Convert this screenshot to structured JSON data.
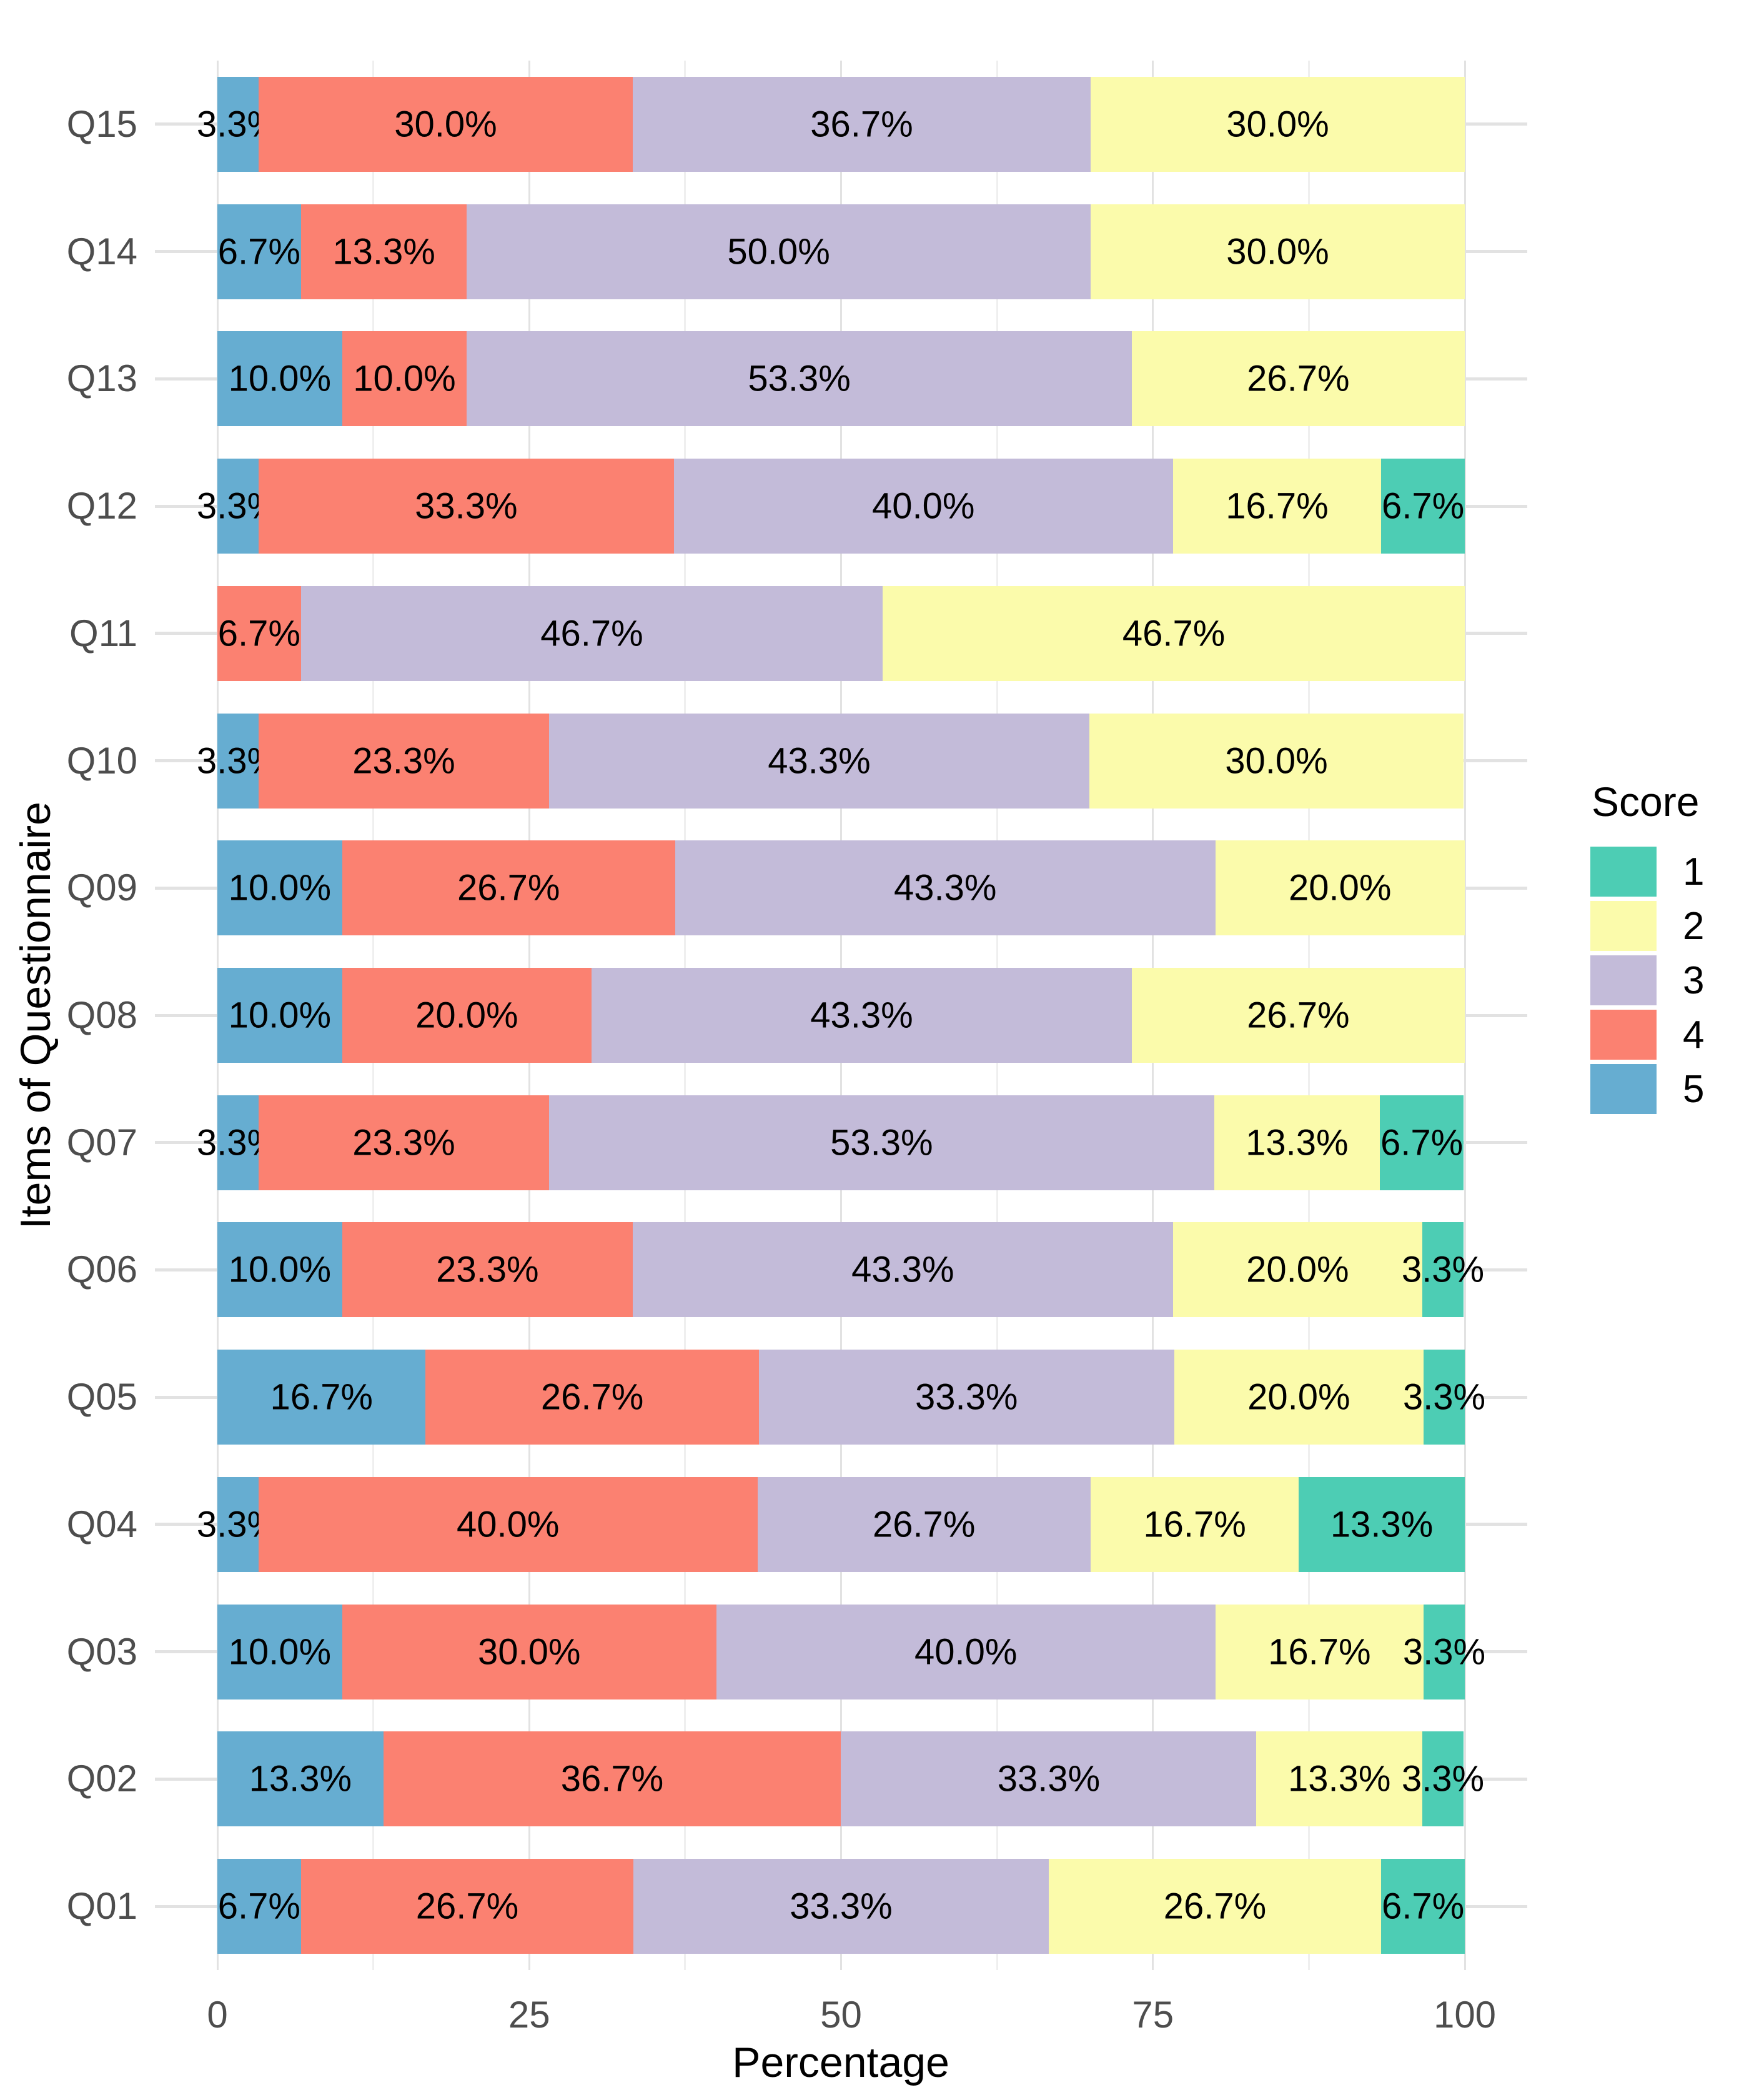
{
  "chart_data": {
    "type": "bar",
    "orientation": "horizontal",
    "stacked": true,
    "xlabel": "Percentage",
    "ylabel": "Items of Questionnaire",
    "xlim": [
      0,
      100
    ],
    "x_ticks": [
      0,
      25,
      50,
      75,
      100
    ],
    "x_minor_ticks": [
      12.5,
      37.5,
      62.5,
      87.5
    ],
    "grid": "on",
    "score_colors": {
      "1": "#4dcdb4",
      "2": "#fbfbab",
      "3": "#c3bbd9",
      "4": "#fb8171",
      "5": "#66add1"
    },
    "legend": {
      "title": "Score",
      "position": "right",
      "entries": [
        {
          "label": "1",
          "color": "#4dcdb4"
        },
        {
          "label": "2",
          "color": "#fbfbab"
        },
        {
          "label": "3",
          "color": "#c3bbd9"
        },
        {
          "label": "4",
          "color": "#fb8171"
        },
        {
          "label": "5",
          "color": "#66add1"
        }
      ]
    },
    "rows": [
      {
        "item": "Q15",
        "segments": [
          {
            "score": "5",
            "value": 3.3,
            "label": "3.3%"
          },
          {
            "score": "4",
            "value": 30.0,
            "label": "30.0%"
          },
          {
            "score": "3",
            "value": 36.7,
            "label": "36.7%"
          },
          {
            "score": "2",
            "value": 30.0,
            "label": "30.0%"
          }
        ]
      },
      {
        "item": "Q14",
        "segments": [
          {
            "score": "5",
            "value": 6.7,
            "label": "6.7%"
          },
          {
            "score": "4",
            "value": 13.3,
            "label": "13.3%"
          },
          {
            "score": "3",
            "value": 50.0,
            "label": "50.0%"
          },
          {
            "score": "2",
            "value": 30.0,
            "label": "30.0%"
          }
        ]
      },
      {
        "item": "Q13",
        "segments": [
          {
            "score": "5",
            "value": 10.0,
            "label": "10.0%"
          },
          {
            "score": "4",
            "value": 10.0,
            "label": "10.0%"
          },
          {
            "score": "3",
            "value": 53.3,
            "label": "53.3%"
          },
          {
            "score": "2",
            "value": 26.7,
            "label": "26.7%"
          }
        ]
      },
      {
        "item": "Q12",
        "segments": [
          {
            "score": "5",
            "value": 3.3,
            "label": "3.3%"
          },
          {
            "score": "4",
            "value": 33.3,
            "label": "33.3%"
          },
          {
            "score": "3",
            "value": 40.0,
            "label": "40.0%"
          },
          {
            "score": "2",
            "value": 16.7,
            "label": "16.7%"
          },
          {
            "score": "1",
            "value": 6.7,
            "label": "6.7%"
          }
        ]
      },
      {
        "item": "Q11",
        "segments": [
          {
            "score": "4",
            "value": 6.7,
            "label": "6.7%"
          },
          {
            "score": "3",
            "value": 46.7,
            "label": "46.7%"
          },
          {
            "score": "2",
            "value": 46.7,
            "label": "46.7%"
          }
        ]
      },
      {
        "item": "Q10",
        "segments": [
          {
            "score": "5",
            "value": 3.3,
            "label": "3.3%"
          },
          {
            "score": "4",
            "value": 23.3,
            "label": "23.3%"
          },
          {
            "score": "3",
            "value": 43.3,
            "label": "43.3%"
          },
          {
            "score": "2",
            "value": 30.0,
            "label": "30.0%"
          }
        ]
      },
      {
        "item": "Q09",
        "segments": [
          {
            "score": "5",
            "value": 10.0,
            "label": "10.0%"
          },
          {
            "score": "4",
            "value": 26.7,
            "label": "26.7%"
          },
          {
            "score": "3",
            "value": 43.3,
            "label": "43.3%"
          },
          {
            "score": "2",
            "value": 20.0,
            "label": "20.0%"
          }
        ]
      },
      {
        "item": "Q08",
        "segments": [
          {
            "score": "5",
            "value": 10.0,
            "label": "10.0%"
          },
          {
            "score": "4",
            "value": 20.0,
            "label": "20.0%"
          },
          {
            "score": "3",
            "value": 43.3,
            "label": "43.3%"
          },
          {
            "score": "2",
            "value": 26.7,
            "label": "26.7%"
          }
        ]
      },
      {
        "item": "Q07",
        "segments": [
          {
            "score": "5",
            "value": 3.3,
            "label": "3.3%"
          },
          {
            "score": "4",
            "value": 23.3,
            "label": "23.3%"
          },
          {
            "score": "3",
            "value": 53.3,
            "label": "53.3%"
          },
          {
            "score": "2",
            "value": 13.3,
            "label": "13.3%"
          },
          {
            "score": "1",
            "value": 6.7,
            "label": "6.7%"
          }
        ]
      },
      {
        "item": "Q06",
        "segments": [
          {
            "score": "5",
            "value": 10.0,
            "label": "10.0%"
          },
          {
            "score": "4",
            "value": 23.3,
            "label": "23.3%"
          },
          {
            "score": "3",
            "value": 43.3,
            "label": "43.3%"
          },
          {
            "score": "2",
            "value": 20.0,
            "label": "20.0%"
          },
          {
            "score": "1",
            "value": 3.3,
            "label": "3.3%"
          }
        ]
      },
      {
        "item": "Q05",
        "segments": [
          {
            "score": "5",
            "value": 16.7,
            "label": "16.7%"
          },
          {
            "score": "4",
            "value": 26.7,
            "label": "26.7%"
          },
          {
            "score": "3",
            "value": 33.3,
            "label": "33.3%"
          },
          {
            "score": "2",
            "value": 20.0,
            "label": "20.0%"
          },
          {
            "score": "1",
            "value": 3.3,
            "label": "3.3%"
          }
        ]
      },
      {
        "item": "Q04",
        "segments": [
          {
            "score": "5",
            "value": 3.3,
            "label": "3.3%"
          },
          {
            "score": "4",
            "value": 40.0,
            "label": "40.0%"
          },
          {
            "score": "3",
            "value": 26.7,
            "label": "26.7%"
          },
          {
            "score": "2",
            "value": 16.7,
            "label": "16.7%"
          },
          {
            "score": "1",
            "value": 13.3,
            "label": "13.3%"
          }
        ]
      },
      {
        "item": "Q03",
        "segments": [
          {
            "score": "5",
            "value": 10.0,
            "label": "10.0%"
          },
          {
            "score": "4",
            "value": 30.0,
            "label": "30.0%"
          },
          {
            "score": "3",
            "value": 40.0,
            "label": "40.0%"
          },
          {
            "score": "2",
            "value": 16.7,
            "label": "16.7%"
          },
          {
            "score": "1",
            "value": 3.3,
            "label": "3.3%"
          }
        ]
      },
      {
        "item": "Q02",
        "segments": [
          {
            "score": "5",
            "value": 13.3,
            "label": "13.3%"
          },
          {
            "score": "4",
            "value": 36.7,
            "label": "36.7%"
          },
          {
            "score": "3",
            "value": 33.3,
            "label": "33.3%"
          },
          {
            "score": "2",
            "value": 13.3,
            "label": "13.3%"
          },
          {
            "score": "1",
            "value": 3.3,
            "label": "3.3%"
          }
        ]
      },
      {
        "item": "Q01",
        "segments": [
          {
            "score": "5",
            "value": 6.7,
            "label": "6.7%"
          },
          {
            "score": "4",
            "value": 26.7,
            "label": "26.7%"
          },
          {
            "score": "3",
            "value": 33.3,
            "label": "33.3%"
          },
          {
            "score": "2",
            "value": 26.7,
            "label": "26.7%"
          },
          {
            "score": "1",
            "value": 6.7,
            "label": "6.7%"
          }
        ]
      }
    ]
  }
}
